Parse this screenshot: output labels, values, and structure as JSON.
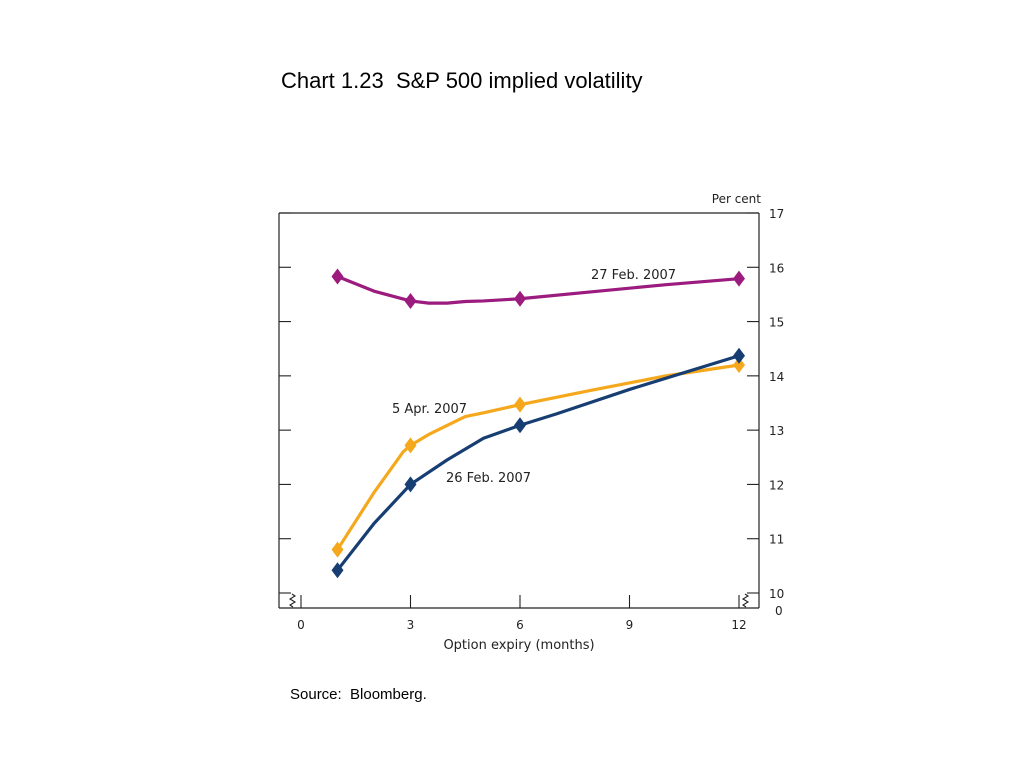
{
  "title": "Chart 1.23  S&P 500 implied volatility",
  "source": "Source:  Bloomberg.",
  "chart_data": {
    "type": "line",
    "title": "",
    "xlabel": "Option expiry (months)",
    "ylabel": "Per cent",
    "x_ticks": [
      "0",
      "3",
      "6",
      "9",
      "12"
    ],
    "y_ticks": [
      "10",
      "11",
      "12",
      "13",
      "14",
      "15",
      "16",
      "17"
    ],
    "y_zero_label": "0",
    "xlim": [
      0,
      12.5
    ],
    "ylim": [
      10,
      17
    ],
    "axis_break": true,
    "grid": false,
    "series": [
      {
        "name": "27 Feb. 2007",
        "color": "#9b1b7e",
        "x": [
          1,
          2,
          3,
          3.5,
          4,
          4.5,
          5,
          6,
          8,
          10,
          12
        ],
        "y": [
          15.83,
          15.56,
          15.38,
          15.34,
          15.34,
          15.37,
          15.38,
          15.42,
          15.55,
          15.68,
          15.79
        ],
        "marker_x": [
          1,
          3,
          6,
          12
        ],
        "marker_y": [
          15.83,
          15.38,
          15.42,
          15.79
        ]
      },
      {
        "name": "5 Apr. 2007",
        "color": "#f5a81c",
        "x": [
          1,
          2,
          2.8,
          3,
          3.5,
          4.5,
          5,
          6,
          8,
          10,
          12
        ],
        "y": [
          10.8,
          11.85,
          12.6,
          12.72,
          12.92,
          13.25,
          13.32,
          13.47,
          13.74,
          14.0,
          14.2
        ],
        "marker_x": [
          1,
          3,
          6,
          12
        ],
        "marker_y": [
          10.8,
          12.72,
          13.47,
          14.2
        ]
      },
      {
        "name": "26 Feb. 2007",
        "color": "#173e73",
        "x": [
          1,
          2,
          3,
          4,
          5,
          6,
          7,
          9,
          12
        ],
        "y": [
          10.42,
          11.28,
          12.0,
          12.45,
          12.85,
          13.09,
          13.3,
          13.75,
          14.37
        ],
        "marker_x": [
          1,
          3,
          6,
          12
        ],
        "marker_y": [
          10.42,
          12.0,
          13.09,
          14.37
        ]
      }
    ]
  }
}
